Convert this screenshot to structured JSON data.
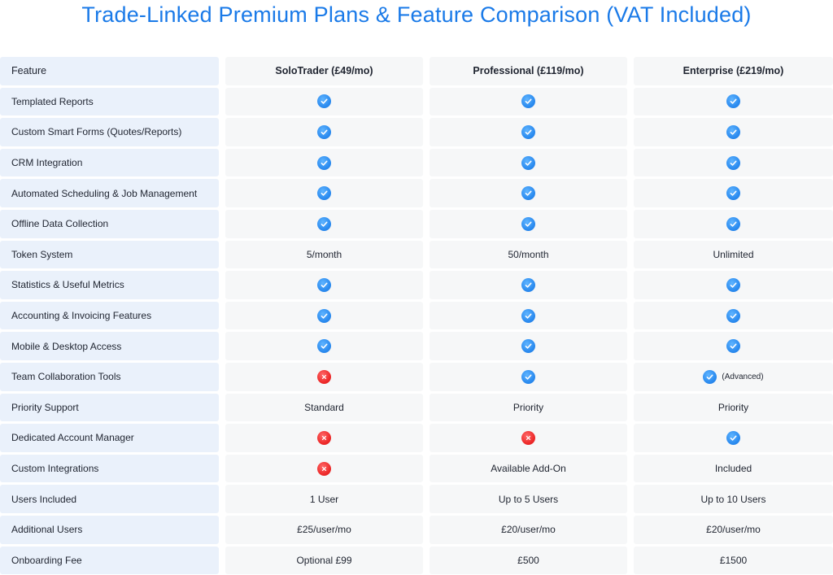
{
  "title": "Trade-Linked Premium Plans & Feature Comparison (VAT Included)",
  "colors": {
    "title": "#1a7ae8",
    "feature_cell_bg": "#eaf1fb",
    "cell_bg": "#f6f7f8",
    "check": "#2c8cf0",
    "cross": "#ee2b2b"
  },
  "columns": [
    "Feature",
    "SoloTrader (£49/mo)",
    "Professional   (£119/mo)",
    "Enterprise (£219/mo)"
  ],
  "rows": [
    {
      "feature": "Templated Reports",
      "cells": [
        {
          "type": "icon",
          "icon": "check"
        },
        {
          "type": "icon",
          "icon": "check"
        },
        {
          "type": "icon",
          "icon": "check"
        }
      ]
    },
    {
      "feature": "Custom Smart Forms (Quotes/Reports)",
      "cells": [
        {
          "type": "icon",
          "icon": "check"
        },
        {
          "type": "icon",
          "icon": "check"
        },
        {
          "type": "icon",
          "icon": "check"
        }
      ]
    },
    {
      "feature": "CRM Integration",
      "cells": [
        {
          "type": "icon",
          "icon": "check"
        },
        {
          "type": "icon",
          "icon": "check"
        },
        {
          "type": "icon",
          "icon": "check"
        }
      ]
    },
    {
      "feature": "Automated Scheduling & Job Management",
      "cells": [
        {
          "type": "icon",
          "icon": "check"
        },
        {
          "type": "icon",
          "icon": "check"
        },
        {
          "type": "icon",
          "icon": "check"
        }
      ]
    },
    {
      "feature": "Offline Data Collection",
      "cells": [
        {
          "type": "icon",
          "icon": "check"
        },
        {
          "type": "icon",
          "icon": "check"
        },
        {
          "type": "icon",
          "icon": "check"
        }
      ]
    },
    {
      "feature": "Token System",
      "cells": [
        {
          "type": "text",
          "text": "5/month"
        },
        {
          "type": "text",
          "text": "50/month"
        },
        {
          "type": "text",
          "text": "Unlimited"
        }
      ]
    },
    {
      "feature": "Statistics & Useful  Metrics",
      "cells": [
        {
          "type": "icon",
          "icon": "check"
        },
        {
          "type": "icon",
          "icon": "check"
        },
        {
          "type": "icon",
          "icon": "check"
        }
      ]
    },
    {
      "feature": "Accounting & Invoicing Features",
      "cells": [
        {
          "type": "icon",
          "icon": "check"
        },
        {
          "type": "icon",
          "icon": "check"
        },
        {
          "type": "icon",
          "icon": "check"
        }
      ]
    },
    {
      "feature": "Mobile & Desktop  Access",
      "cells": [
        {
          "type": "icon",
          "icon": "check"
        },
        {
          "type": "icon",
          "icon": "check"
        },
        {
          "type": "icon",
          "icon": "check"
        }
      ]
    },
    {
      "feature": "Team Collaboration  Tools",
      "cells": [
        {
          "type": "icon",
          "icon": "cross"
        },
        {
          "type": "icon",
          "icon": "check"
        },
        {
          "type": "icon",
          "icon": "check",
          "note": "(Advanced)"
        }
      ]
    },
    {
      "feature": "Priority Support",
      "cells": [
        {
          "type": "text",
          "text": "Standard"
        },
        {
          "type": "text",
          "text": "Priority"
        },
        {
          "type": "text",
          "text": "Priority"
        }
      ]
    },
    {
      "feature": "Dedicated Account Manager",
      "cells": [
        {
          "type": "icon",
          "icon": "cross"
        },
        {
          "type": "icon",
          "icon": "cross"
        },
        {
          "type": "icon",
          "icon": "check"
        }
      ]
    },
    {
      "feature": "Custom Integrations",
      "cells": [
        {
          "type": "icon",
          "icon": "cross"
        },
        {
          "type": "text",
          "text": "Available Add-On"
        },
        {
          "type": "text",
          "text": "Included"
        }
      ]
    },
    {
      "feature": "Users Included",
      "cells": [
        {
          "type": "text",
          "text": "1 User"
        },
        {
          "type": "text",
          "text": "Up to 5 Users"
        },
        {
          "type": "text",
          "text": "Up to 10 Users"
        }
      ]
    },
    {
      "feature": "Additional Users",
      "cells": [
        {
          "type": "text",
          "text": "£25/user/mo"
        },
        {
          "type": "text",
          "text": "£20/user/mo"
        },
        {
          "type": "text",
          "text": "£20/user/mo"
        }
      ]
    },
    {
      "feature": "Onboarding Fee",
      "cells": [
        {
          "type": "text",
          "text": "Optional £99"
        },
        {
          "type": "text",
          "text": "£500"
        },
        {
          "type": "text",
          "text": "£1500"
        }
      ]
    }
  ]
}
